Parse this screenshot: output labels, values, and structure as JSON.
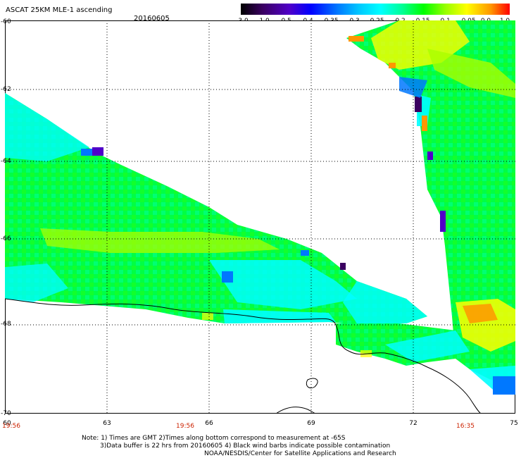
{
  "header": {
    "title": "ASCAT 25KM MLE-1 ascending",
    "date": "20160605"
  },
  "colorbar": {
    "labels": [
      "-3.0",
      "-1.0",
      "-0.5",
      "-0.4",
      "-0.35",
      "-0.3",
      "-0.25",
      "-0.2",
      "-0.15",
      "-0.1",
      "-0.05",
      "0.0",
      "1.0"
    ],
    "colors": [
      "#000000",
      "#3a0060",
      "#5000c8",
      "#0000ff",
      "#0078ff",
      "#00c8ff",
      "#00ffff",
      "#00ff96",
      "#00ff00",
      "#96ff00",
      "#ffff00",
      "#ff9600",
      "#ff0000"
    ]
  },
  "axes": {
    "lat_labels": [
      "-60",
      "-62",
      "-64",
      "-66",
      "-68",
      "-70"
    ],
    "lon_labels": [
      "60",
      "63",
      "66",
      "69",
      "72",
      "75"
    ],
    "time_labels": [
      "19:56",
      "19:56",
      "16:35"
    ]
  },
  "notes": {
    "line1": "Note: 1) Times are GMT 2)Times along bottom correspond to measurement at -65S",
    "line2": "3)Data buffer is 22 hrs from 20160605 4) Black wind barbs indicate possible contamination",
    "line3": "NOAA/NESDIS/Center for Satellite Applications and Research"
  }
}
